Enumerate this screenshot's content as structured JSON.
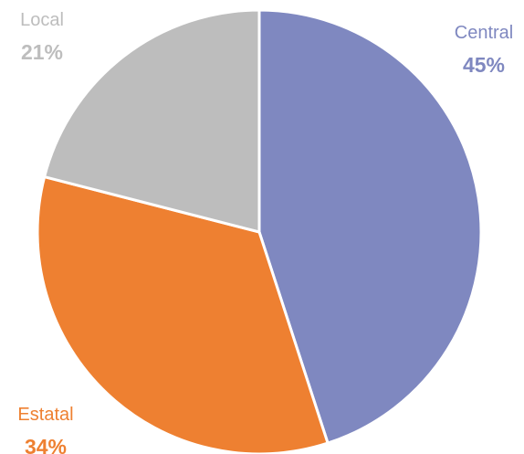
{
  "chart_data": {
    "type": "pie",
    "slices": [
      {
        "label": "Central",
        "value": 45,
        "value_label": "45%",
        "color": "#7f88c0"
      },
      {
        "label": "Estatal",
        "value": 34,
        "value_label": "34%",
        "color": "#ee8031"
      },
      {
        "label": "Local",
        "value": 21,
        "value_label": "21%",
        "color": "#bdbdbd"
      }
    ],
    "start_position": "top",
    "direction": "clockwise",
    "legend": "none"
  }
}
